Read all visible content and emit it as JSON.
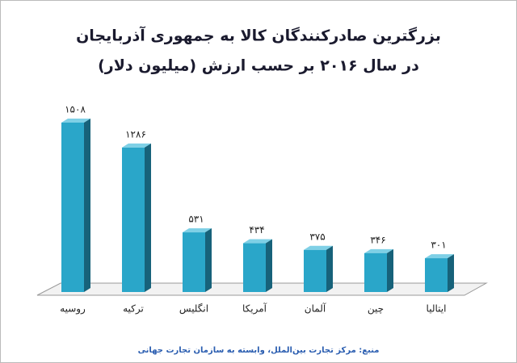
{
  "chart_data": {
    "type": "bar",
    "title": "بزرگترین صادرکنندگان کالا به جمهوری آذربایجان",
    "subtitle": "در سال ۲۰۱۶ بر حسب ارزش (میلیون دلار)",
    "categories": [
      "روسیه",
      "ترکیه",
      "انگلیس",
      "آمریکا",
      "آلمان",
      "چین",
      "ایتالیا"
    ],
    "values": [
      1508,
      1286,
      531,
      434,
      375,
      346,
      301
    ],
    "value_labels": [
      "۱۵۰۸",
      "۱۲۸۶",
      "۵۳۱",
      "۴۳۴",
      "۳۷۵",
      "۳۴۶",
      "۳۰۱"
    ],
    "color": "#2aa6c9",
    "source": "منبع: مرکز تجارت بین‌الملل، وابسته به سازمان تجارت جهانی"
  }
}
